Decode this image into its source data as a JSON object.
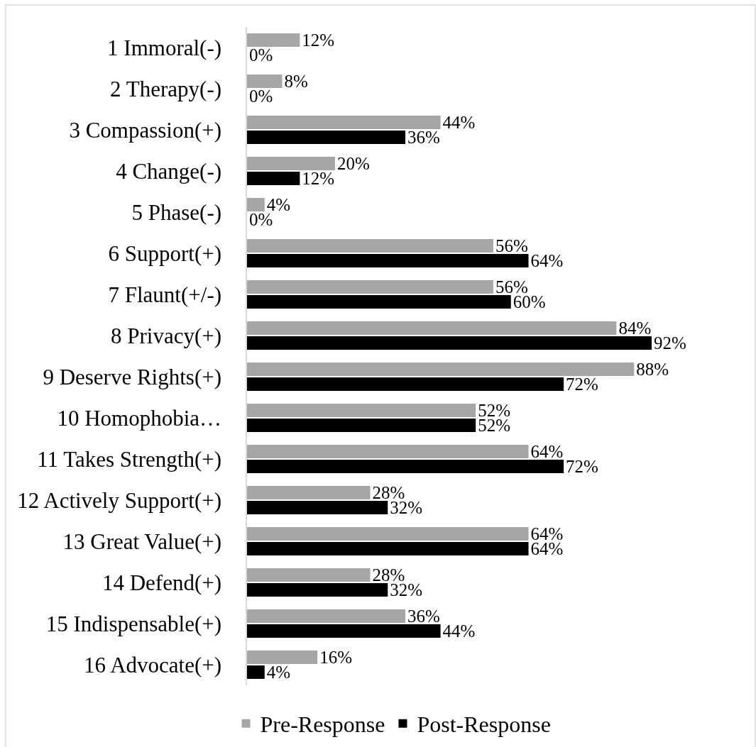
{
  "chart_data": {
    "type": "bar",
    "orientation": "horizontal",
    "categories": [
      "1 Immoral(-)",
      "2 Therapy(-)",
      "3 Compassion(+)",
      "4 Change(-)",
      "5 Phase(-)",
      "6 Support(+)",
      "7 Flaunt(+/-)",
      "8 Privacy(+)",
      "9 Deserve Rights(+)",
      "10 Homophobia…",
      "11 Takes Strength(+)",
      "12 Actively Support(+)",
      "13 Great Value(+)",
      "14 Defend(+)",
      "15 Indispensable(+)",
      "16 Advocate(+)"
    ],
    "series": [
      {
        "name": "Pre-Response",
        "color": "#a6a6a6",
        "values": [
          12,
          8,
          44,
          20,
          4,
          56,
          56,
          84,
          88,
          52,
          64,
          28,
          64,
          28,
          36,
          16
        ],
        "value_labels": [
          "12%",
          "8%",
          "44%",
          "20%",
          "4%",
          "56%",
          "56%",
          "84%",
          "88%",
          "52%",
          "64%",
          "28%",
          "64%",
          "28%",
          "36%",
          "16%"
        ]
      },
      {
        "name": "Post-Response",
        "color": "#000000",
        "values": [
          0,
          0,
          36,
          12,
          0,
          64,
          60,
          92,
          72,
          52,
          72,
          32,
          64,
          32,
          44,
          4
        ],
        "value_labels": [
          "0%",
          "0%",
          "36%",
          "12%",
          "0%",
          "64%",
          "60%",
          "92%",
          "72%",
          "52%",
          "72%",
          "32%",
          "64%",
          "32%",
          "44%",
          "4%"
        ]
      }
    ],
    "tick_labels": "y",
    "legend": "bottom"
  }
}
